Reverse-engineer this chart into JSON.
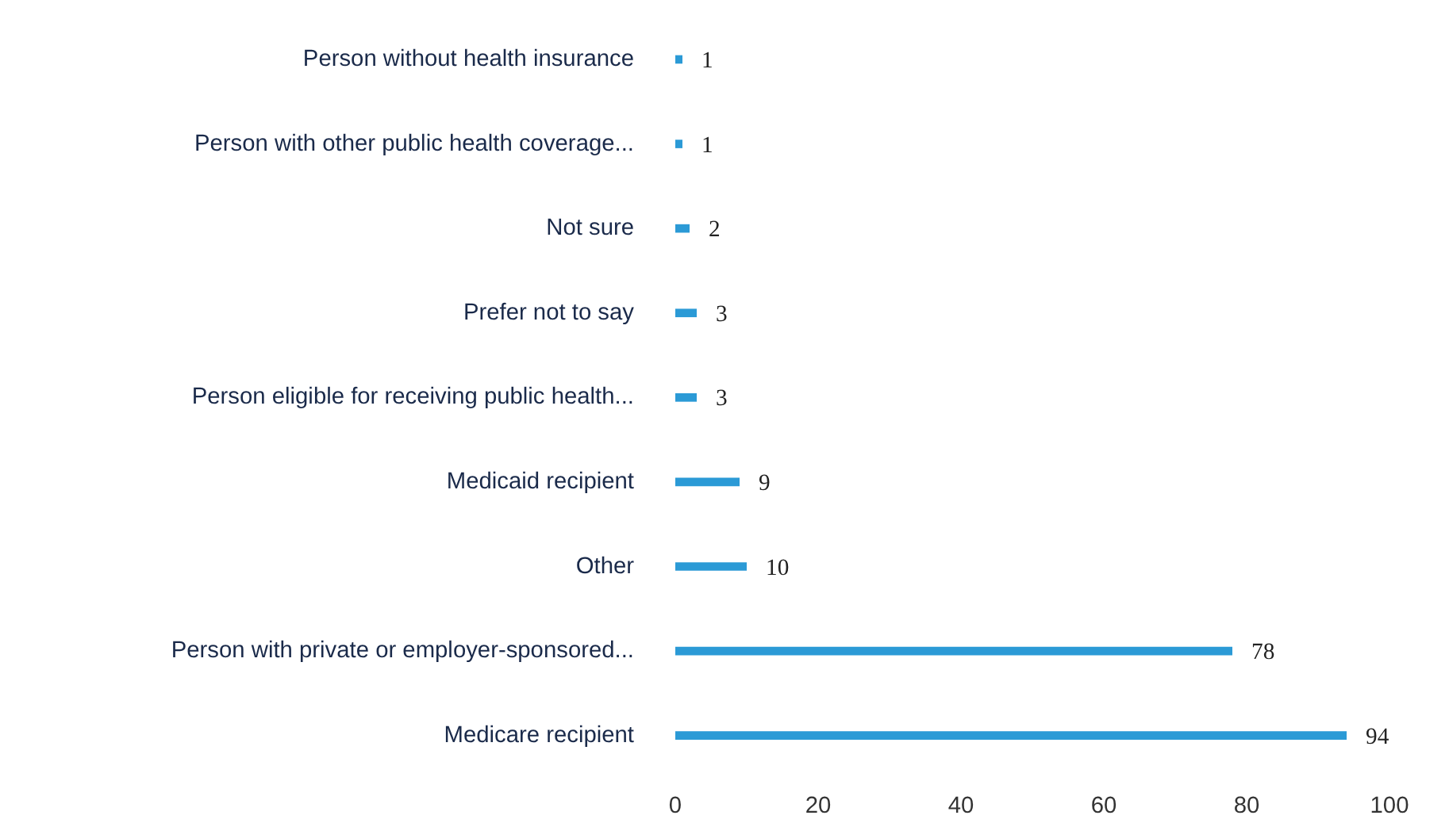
{
  "chart_data": {
    "type": "bar",
    "orientation": "horizontal",
    "categories": [
      "Person without health insurance",
      "Person with other public health coverage...",
      "Not sure",
      "Prefer not to say",
      "Person eligible for receiving public health...",
      "Medicaid recipient",
      "Other",
      "Person with private or employer-sponsored...",
      "Medicare recipient"
    ],
    "values": [
      1,
      1,
      2,
      3,
      3,
      9,
      10,
      78,
      94
    ],
    "color": "#2b9ad6",
    "xlim": [
      0,
      100
    ],
    "xticks": [
      0,
      20,
      40,
      60,
      80,
      100
    ],
    "data_labels": true,
    "grid": false
  }
}
